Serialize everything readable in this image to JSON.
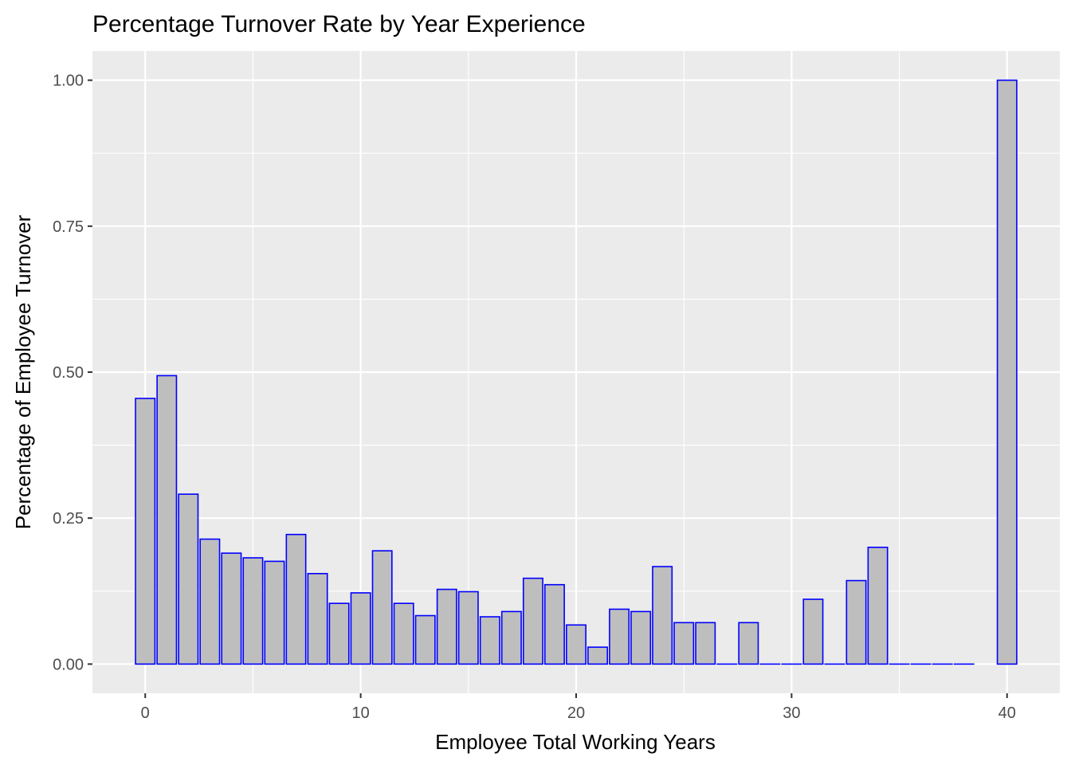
{
  "chart_data": {
    "type": "bar",
    "title": "Percentage Turnover Rate by Year Experience",
    "xlabel": "Employee Total Working Years",
    "ylabel": "Percentage of Employee Turnover",
    "x": [
      0,
      1,
      2,
      3,
      4,
      5,
      6,
      7,
      8,
      9,
      10,
      11,
      12,
      13,
      14,
      15,
      16,
      17,
      18,
      19,
      20,
      21,
      22,
      23,
      24,
      25,
      26,
      27,
      28,
      29,
      30,
      31,
      32,
      33,
      34,
      35,
      36,
      37,
      38,
      40
    ],
    "values": [
      0.455,
      0.494,
      0.291,
      0.214,
      0.19,
      0.182,
      0.176,
      0.222,
      0.155,
      0.104,
      0.122,
      0.194,
      0.104,
      0.083,
      0.128,
      0.124,
      0.081,
      0.09,
      0.147,
      0.136,
      0.067,
      0.029,
      0.094,
      0.09,
      0.167,
      0.071,
      0.071,
      0.0,
      0.071,
      0.0,
      0.0,
      0.111,
      0.0,
      0.143,
      0.2,
      0.0,
      0.0,
      0.0,
      0.0,
      1.0
    ],
    "xlim": [
      -2.45,
      42.45
    ],
    "ylim": [
      -0.05,
      1.05
    ],
    "x_ticks": [
      "0",
      "10",
      "20",
      "30",
      "40"
    ],
    "y_ticks": [
      "0.00",
      "0.25",
      "0.50",
      "0.75",
      "1.00"
    ],
    "grid": true,
    "bar_fill": "#bebebe",
    "bar_outline": "#0000ff",
    "panel_background": "#ebebeb",
    "grid_color": "#ffffff"
  }
}
